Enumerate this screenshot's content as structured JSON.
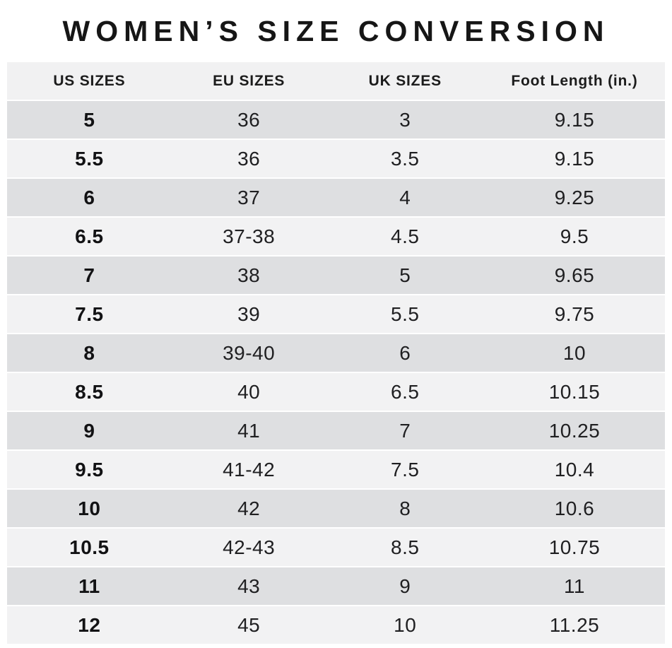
{
  "title": "WOMEN’S SIZE CONVERSION",
  "chart_data": {
    "type": "table",
    "title": "WOMEN’S SIZE CONVERSION",
    "columns": [
      "US SIZES",
      "EU SIZES",
      "UK SIZES",
      "Foot Length (in.)"
    ],
    "rows": [
      [
        "5",
        "36",
        "3",
        "9.15"
      ],
      [
        "5.5",
        "36",
        "3.5",
        "9.15"
      ],
      [
        "6",
        "37",
        "4",
        "9.25"
      ],
      [
        "6.5",
        "37-38",
        "4.5",
        "9.5"
      ],
      [
        "7",
        "38",
        "5",
        "9.65"
      ],
      [
        "7.5",
        "39",
        "5.5",
        "9.75"
      ],
      [
        "8",
        "39-40",
        "6",
        "10"
      ],
      [
        "8.5",
        "40",
        "6.5",
        "10.15"
      ],
      [
        "9",
        "41",
        "7",
        "10.25"
      ],
      [
        "9.5",
        "41-42",
        "7.5",
        "10.4"
      ],
      [
        "10",
        "42",
        "8",
        "10.6"
      ],
      [
        "10.5",
        "42-43",
        "8.5",
        "10.75"
      ],
      [
        "11",
        "43",
        "9",
        "11"
      ],
      [
        "12",
        "45",
        "10",
        "11.25"
      ]
    ],
    "layout": {
      "row_striping": "first-data-row-dark, alternating",
      "grid": "horizontal white gaps between rows",
      "legend": "none"
    }
  },
  "colors": {
    "background": "#ffffff",
    "row_dark": "#dedfe1",
    "row_light": "#f2f2f3",
    "header_bg": "#f1f1f2",
    "title_text": "#161616",
    "cell_text": "#1f1f21"
  }
}
